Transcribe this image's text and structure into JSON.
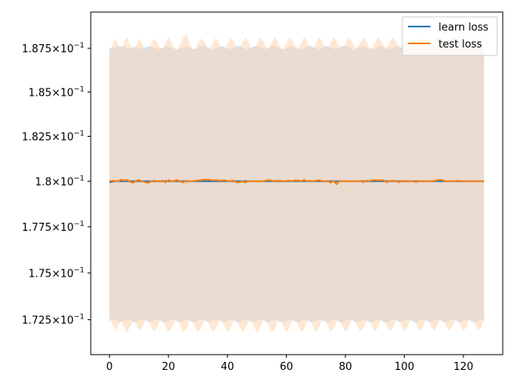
{
  "chart_data": {
    "type": "line",
    "title": "",
    "xlabel": "",
    "ylabel": "",
    "yscale": "log",
    "grid": false,
    "legend_placement": "top-right",
    "xlim": [
      -6.35,
      133.35
    ],
    "ylim": [
      0.17066,
      0.1896
    ],
    "x_ticks": [
      0,
      20,
      40,
      60,
      80,
      100,
      120
    ],
    "x_tick_labels": [
      "0",
      "20",
      "40",
      "60",
      "80",
      "100",
      "120"
    ],
    "y_ticks": [
      0.1725,
      0.175,
      0.1775,
      0.18,
      0.1825,
      0.185,
      0.1875
    ],
    "y_tick_mantissas": [
      "1.725",
      "1.75",
      "1.775",
      "1.8",
      "1.825",
      "1.85",
      "1.875"
    ],
    "y_tick_base": "10",
    "y_tick_exponent": "−1",
    "x": [
      0,
      1,
      2,
      3,
      4,
      5,
      6,
      7,
      8,
      9,
      10,
      11,
      12,
      13,
      14,
      15,
      16,
      17,
      18,
      19,
      20,
      21,
      22,
      23,
      24,
      25,
      26,
      27,
      28,
      29,
      30,
      31,
      32,
      33,
      34,
      35,
      36,
      37,
      38,
      39,
      40,
      41,
      42,
      43,
      44,
      45,
      46,
      47,
      48,
      49,
      50,
      51,
      52,
      53,
      54,
      55,
      56,
      57,
      58,
      59,
      60,
      61,
      62,
      63,
      64,
      65,
      66,
      67,
      68,
      69,
      70,
      71,
      72,
      73,
      74,
      75,
      76,
      77,
      78,
      79,
      80,
      81,
      82,
      83,
      84,
      85,
      86,
      87,
      88,
      89,
      90,
      91,
      92,
      93,
      94,
      95,
      96,
      97,
      98,
      99,
      100,
      101,
      102,
      103,
      104,
      105,
      106,
      107,
      108,
      109,
      110,
      111,
      112,
      113,
      114,
      115,
      116,
      117,
      118,
      119,
      120,
      121,
      122,
      123,
      124,
      125,
      126,
      127
    ],
    "series": [
      {
        "name": "learn loss",
        "color": "#1f77b4",
        "band_color": "#aed3f7",
        "values": [
          0.17993,
          0.17998,
          0.18,
          0.18,
          0.18,
          0.18,
          0.18,
          0.18,
          0.18,
          0.18,
          0.18,
          0.18,
          0.18,
          0.18,
          0.18,
          0.18,
          0.18,
          0.18,
          0.18,
          0.18,
          0.18,
          0.18,
          0.18,
          0.18,
          0.18,
          0.18,
          0.18,
          0.18,
          0.18,
          0.18,
          0.18,
          0.18,
          0.18,
          0.18,
          0.18,
          0.18,
          0.18,
          0.18,
          0.18,
          0.18,
          0.18,
          0.18,
          0.18,
          0.18,
          0.18,
          0.18,
          0.18,
          0.18,
          0.18,
          0.18,
          0.18,
          0.18,
          0.18,
          0.18,
          0.18,
          0.18,
          0.18,
          0.18,
          0.18,
          0.18,
          0.18,
          0.18,
          0.18,
          0.18,
          0.18,
          0.18,
          0.18,
          0.18,
          0.18,
          0.18,
          0.18,
          0.18,
          0.18,
          0.18,
          0.18,
          0.18,
          0.18,
          0.18,
          0.18,
          0.18,
          0.18,
          0.18,
          0.18,
          0.18,
          0.18,
          0.18,
          0.18,
          0.18,
          0.18,
          0.18,
          0.18,
          0.18,
          0.18,
          0.18,
          0.18,
          0.18,
          0.18,
          0.18,
          0.18,
          0.18,
          0.18,
          0.18,
          0.18,
          0.18,
          0.18,
          0.18,
          0.18,
          0.18,
          0.18,
          0.18,
          0.18,
          0.18,
          0.18,
          0.18,
          0.18,
          0.18,
          0.18,
          0.18,
          0.18,
          0.18,
          0.18,
          0.18,
          0.18,
          0.18,
          0.18,
          0.18,
          0.18,
          0.18
        ],
        "upper": [
          0.18753,
          0.18745,
          0.18755,
          0.1876,
          0.18762,
          0.1876,
          0.18752,
          0.18748,
          0.18756,
          0.18758,
          0.1875,
          0.18745,
          0.18754,
          0.1876,
          0.18763,
          0.18757,
          0.18749,
          0.18744,
          0.18752,
          0.18759,
          0.18761,
          0.18755,
          0.18747,
          0.18742,
          0.1875,
          0.18757,
          0.1876,
          0.18756,
          0.18748,
          0.18746,
          0.18755,
          0.18762,
          0.18764,
          0.18758,
          0.18749,
          0.18743,
          0.18751,
          0.18758,
          0.18762,
          0.18757,
          0.18748,
          0.18745,
          0.18754,
          0.18761,
          0.18763,
          0.18756,
          0.18747,
          0.18744,
          0.18752,
          0.1876,
          0.18762,
          0.18755,
          0.18746,
          0.18745,
          0.18754,
          0.18761,
          0.18763,
          0.18757,
          0.18748,
          0.18743,
          0.18751,
          0.18758,
          0.18761,
          0.18756,
          0.18747,
          0.18745,
          0.18754,
          0.1876,
          0.18763,
          0.18757,
          0.18749,
          0.18744,
          0.18752,
          0.18759,
          0.18762,
          0.18755,
          0.18747,
          0.18746,
          0.18755,
          0.18762,
          0.18764,
          0.18757,
          0.18748,
          0.18743,
          0.18752,
          0.18759,
          0.18761,
          0.18756,
          0.18747,
          0.18745,
          0.18754,
          0.18761,
          0.18763,
          0.18758,
          0.18749,
          0.18744,
          0.18752,
          0.18759,
          0.18762,
          0.18755,
          0.18746,
          0.18745,
          0.18754,
          0.1876,
          0.18763,
          0.18757,
          0.18748,
          0.18743,
          0.18751,
          0.18758,
          0.18761,
          0.18756,
          0.18747,
          0.18745,
          0.18754,
          0.18761,
          0.18763,
          0.18757,
          0.18749,
          0.18744,
          0.18752,
          0.18759,
          0.18762,
          0.18755,
          0.18747,
          0.18746,
          0.18755,
          0.1875
        ],
        "lower": [
          0.17237,
          0.17255,
          0.17248,
          0.17242,
          0.17238,
          0.17246,
          0.17254,
          0.17249,
          0.1724,
          0.17236,
          0.17244,
          0.17252,
          0.1725,
          0.17241,
          0.17237,
          0.17245,
          0.17253,
          0.17248,
          0.17239,
          0.17235,
          0.17243,
          0.17252,
          0.17251,
          0.17242,
          0.17236,
          0.17244,
          0.17253,
          0.17249,
          0.1724,
          0.17237,
          0.17246,
          0.17254,
          0.17248,
          0.17239,
          0.17236,
          0.17245,
          0.17253,
          0.1725,
          0.17241,
          0.17237,
          0.17244,
          0.17252,
          0.17249,
          0.1724,
          0.17236,
          0.17245,
          0.17253,
          0.1725,
          0.17241,
          0.17236,
          0.17244,
          0.17252,
          0.17251,
          0.17242,
          0.17237,
          0.17245,
          0.17253,
          0.17248,
          0.17239,
          0.17235,
          0.17243,
          0.17252,
          0.1725,
          0.17241,
          0.17237,
          0.17246,
          0.17254,
          0.17249,
          0.1724,
          0.17236,
          0.17244,
          0.17252,
          0.1725,
          0.17241,
          0.17237,
          0.17245,
          0.17253,
          0.17248,
          0.17239,
          0.17236,
          0.17244,
          0.17253,
          0.17251,
          0.17242,
          0.17236,
          0.17244,
          0.17252,
          0.17249,
          0.1724,
          0.17237,
          0.17246,
          0.17254,
          0.17248,
          0.17239,
          0.17235,
          0.17243,
          0.17252,
          0.1725,
          0.17241,
          0.17237,
          0.17245,
          0.17253,
          0.17249,
          0.1724,
          0.17236,
          0.17245,
          0.17253,
          0.1725,
          0.17241,
          0.17237,
          0.17244,
          0.17252,
          0.17249,
          0.1724,
          0.17236,
          0.17245,
          0.17253,
          0.17251,
          0.17242,
          0.17236,
          0.17244,
          0.17253,
          0.17249,
          0.1724,
          0.17237,
          0.17246,
          0.17254,
          0.1724
        ]
      },
      {
        "name": "test loss",
        "color": "#ff7f0e",
        "band_color": "#ffd9b6",
        "values": [
          0.18,
          0.18003,
          0.18001,
          0.18,
          0.18008,
          0.18004,
          0.18007,
          0.17997,
          0.17992,
          0.18002,
          0.18006,
          0.18,
          0.17995,
          0.17991,
          0.17997,
          0.18003,
          0.18,
          0.17998,
          0.18004,
          0.17993,
          0.18006,
          0.17999,
          0.18002,
          0.18007,
          0.17999,
          0.17993,
          0.18003,
          0.17999,
          0.18,
          0.18002,
          0.18004,
          0.18006,
          0.18008,
          0.18008,
          0.18008,
          0.18005,
          0.18006,
          0.18004,
          0.18003,
          0.18006,
          0.18001,
          0.18,
          0.18004,
          0.17994,
          0.17994,
          0.17999,
          0.17993,
          0.17999,
          0.18001,
          0.18,
          0.17999,
          0.18,
          0.18,
          0.18003,
          0.18006,
          0.18003,
          0.18001,
          0.18003,
          0.18002,
          0.18,
          0.18002,
          0.18003,
          0.18001,
          0.18005,
          0.18004,
          0.18001,
          0.18007,
          0.18,
          0.18002,
          0.18,
          0.18003,
          0.18006,
          0.18002,
          0.18,
          0.18001,
          0.17992,
          0.18001,
          0.17983,
          0.18001,
          0.17999,
          0.18,
          0.18,
          0.17999,
          0.18001,
          0.17998,
          0.18003,
          0.17994,
          0.18003,
          0.18001,
          0.18005,
          0.18007,
          0.18005,
          0.18006,
          0.18005,
          0.17994,
          0.17999,
          0.18003,
          0.18001,
          0.17994,
          0.18002,
          0.18001,
          0.17997,
          0.18001,
          0.17998,
          0.17996,
          0.18,
          0.18001,
          0.18,
          0.18001,
          0.17998,
          0.18003,
          0.18004,
          0.18007,
          0.18006,
          0.17998,
          0.18,
          0.18001,
          0.18,
          0.18003,
          0.18001,
          0.18,
          0.18,
          0.17999,
          0.17998,
          0.18,
          0.18,
          0.18,
          0.18
        ],
        "upper": [
          0.1872,
          0.18775,
          0.18805,
          0.18768,
          0.18742,
          0.1879,
          0.18812,
          0.18773,
          0.1874,
          0.18762,
          0.18808,
          0.18785,
          0.18748,
          0.18738,
          0.18771,
          0.18806,
          0.18792,
          0.18755,
          0.18745,
          0.18779,
          0.18813,
          0.18788,
          0.18751,
          0.18742,
          0.18776,
          0.18809,
          0.18834,
          0.18786,
          0.1875,
          0.18741,
          0.18774,
          0.18807,
          0.18791,
          0.18756,
          0.18746,
          0.18779,
          0.18811,
          0.18787,
          0.18752,
          0.18743,
          0.18776,
          0.18809,
          0.18794,
          0.18758,
          0.18747,
          0.1878,
          0.18812,
          0.18789,
          0.18753,
          0.18744,
          0.18777,
          0.1881,
          0.18795,
          0.18759,
          0.18748,
          0.18781,
          0.18813,
          0.1879,
          0.18754,
          0.18745,
          0.18778,
          0.18811,
          0.18796,
          0.1876,
          0.18749,
          0.18782,
          0.18814,
          0.18791,
          0.18755,
          0.18746,
          0.18779,
          0.18812,
          0.18797,
          0.18761,
          0.1875,
          0.18783,
          0.18815,
          0.18792,
          0.18756,
          0.18747,
          0.1878,
          0.18813,
          0.18798,
          0.18762,
          0.18751,
          0.18784,
          0.18816,
          0.18793,
          0.18757,
          0.18748,
          0.18781,
          0.18814,
          0.18799,
          0.18763,
          0.18752,
          0.18785,
          0.18817,
          0.18794,
          0.18758,
          0.18749,
          0.18782,
          0.18815,
          0.188,
          0.18764,
          0.18753,
          0.18786,
          0.18818,
          0.18795,
          0.18759,
          0.1875,
          0.18783,
          0.18816,
          0.18801,
          0.18765,
          0.18754,
          0.18787,
          0.18819,
          0.18796,
          0.1876,
          0.18751,
          0.18784,
          0.18817,
          0.18802,
          0.18766,
          0.18755,
          0.18788,
          0.1882,
          0.1872
        ],
        "lower": [
          0.17262,
          0.17228,
          0.17195,
          0.17222,
          0.17248,
          0.17206,
          0.17182,
          0.17214,
          0.17246,
          0.17224,
          0.17191,
          0.17208,
          0.17243,
          0.17252,
          0.17219,
          0.17187,
          0.17201,
          0.1724,
          0.1725,
          0.17216,
          0.17184,
          0.17204,
          0.17241,
          0.17251,
          0.17217,
          0.17185,
          0.17199,
          0.17238,
          0.17249,
          0.17214,
          0.17183,
          0.17203,
          0.1724,
          0.1725,
          0.17215,
          0.17183,
          0.172,
          0.17239,
          0.17249,
          0.17215,
          0.17184,
          0.17205,
          0.17241,
          0.1725,
          0.17216,
          0.17184,
          0.17201,
          0.17239,
          0.17248,
          0.17213,
          0.17182,
          0.17204,
          0.17242,
          0.17251,
          0.17217,
          0.17185,
          0.172,
          0.17238,
          0.17249,
          0.17214,
          0.17183,
          0.17206,
          0.17243,
          0.17252,
          0.17218,
          0.17186,
          0.17201,
          0.17239,
          0.1725,
          0.17215,
          0.17184,
          0.17207,
          0.17244,
          0.17253,
          0.17219,
          0.17187,
          0.17202,
          0.1724,
          0.17251,
          0.17216,
          0.17185,
          0.17208,
          0.17245,
          0.17254,
          0.1722,
          0.17188,
          0.17203,
          0.17241,
          0.17252,
          0.17217,
          0.17186,
          0.17209,
          0.17246,
          0.17255,
          0.17221,
          0.17189,
          0.17204,
          0.17242,
          0.17253,
          0.17218,
          0.17187,
          0.1721,
          0.17247,
          0.17256,
          0.17222,
          0.1719,
          0.17205,
          0.17243,
          0.17254,
          0.17219,
          0.17188,
          0.17211,
          0.17248,
          0.17257,
          0.17223,
          0.17191,
          0.17206,
          0.17244,
          0.17255,
          0.1722,
          0.17189,
          0.17212,
          0.17249,
          0.17258,
          0.17224,
          0.17192,
          0.17207,
          0.1728
        ]
      }
    ]
  }
}
